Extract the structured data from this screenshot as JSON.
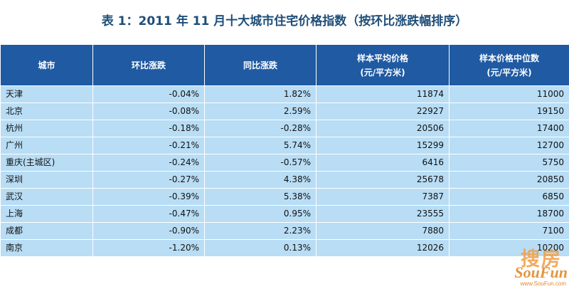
{
  "title": "表 1：2011 年 11 月十大城市住宅价格指数（按环比涨跌幅排序）",
  "headers": {
    "city": "城市",
    "mom": "环比涨跌",
    "yoy": "同比涨跌",
    "avg_line1": "样本平均价格",
    "avg_line2": "(元/平方米)",
    "median_line1": "样本价格中位数",
    "median_line2": "(元/平方米)"
  },
  "rows": [
    {
      "city": "天津",
      "mom": "-0.04%",
      "yoy": "1.82%",
      "avg": "11874",
      "median": "11000"
    },
    {
      "city": "北京",
      "mom": "-0.08%",
      "yoy": "2.59%",
      "avg": "22927",
      "median": "19150"
    },
    {
      "city": "杭州",
      "mom": "-0.18%",
      "yoy": "-0.28%",
      "avg": "20506",
      "median": "17400"
    },
    {
      "city": "广州",
      "mom": "-0.21%",
      "yoy": "5.74%",
      "avg": "15299",
      "median": "12700"
    },
    {
      "city": "重庆(主城区)",
      "mom": "-0.24%",
      "yoy": "-0.57%",
      "avg": "6416",
      "median": "5750"
    },
    {
      "city": "深圳",
      "mom": "-0.27%",
      "yoy": "4.38%",
      "avg": "25678",
      "median": "20850"
    },
    {
      "city": "武汉",
      "mom": "-0.39%",
      "yoy": "5.38%",
      "avg": "7387",
      "median": "6850"
    },
    {
      "city": "上海",
      "mom": "-0.47%",
      "yoy": "0.95%",
      "avg": "23555",
      "median": "18700"
    },
    {
      "city": "成都",
      "mom": "-0.90%",
      "yoy": "2.23%",
      "avg": "7880",
      "median": "7100"
    },
    {
      "city": "南京",
      "mom": "-1.20%",
      "yoy": "0.13%",
      "avg": "12026",
      "median": "10200"
    }
  ],
  "watermark": {
    "chinese": "搜房",
    "brand": "SouFun",
    "url": "www.SouFun.com"
  }
}
